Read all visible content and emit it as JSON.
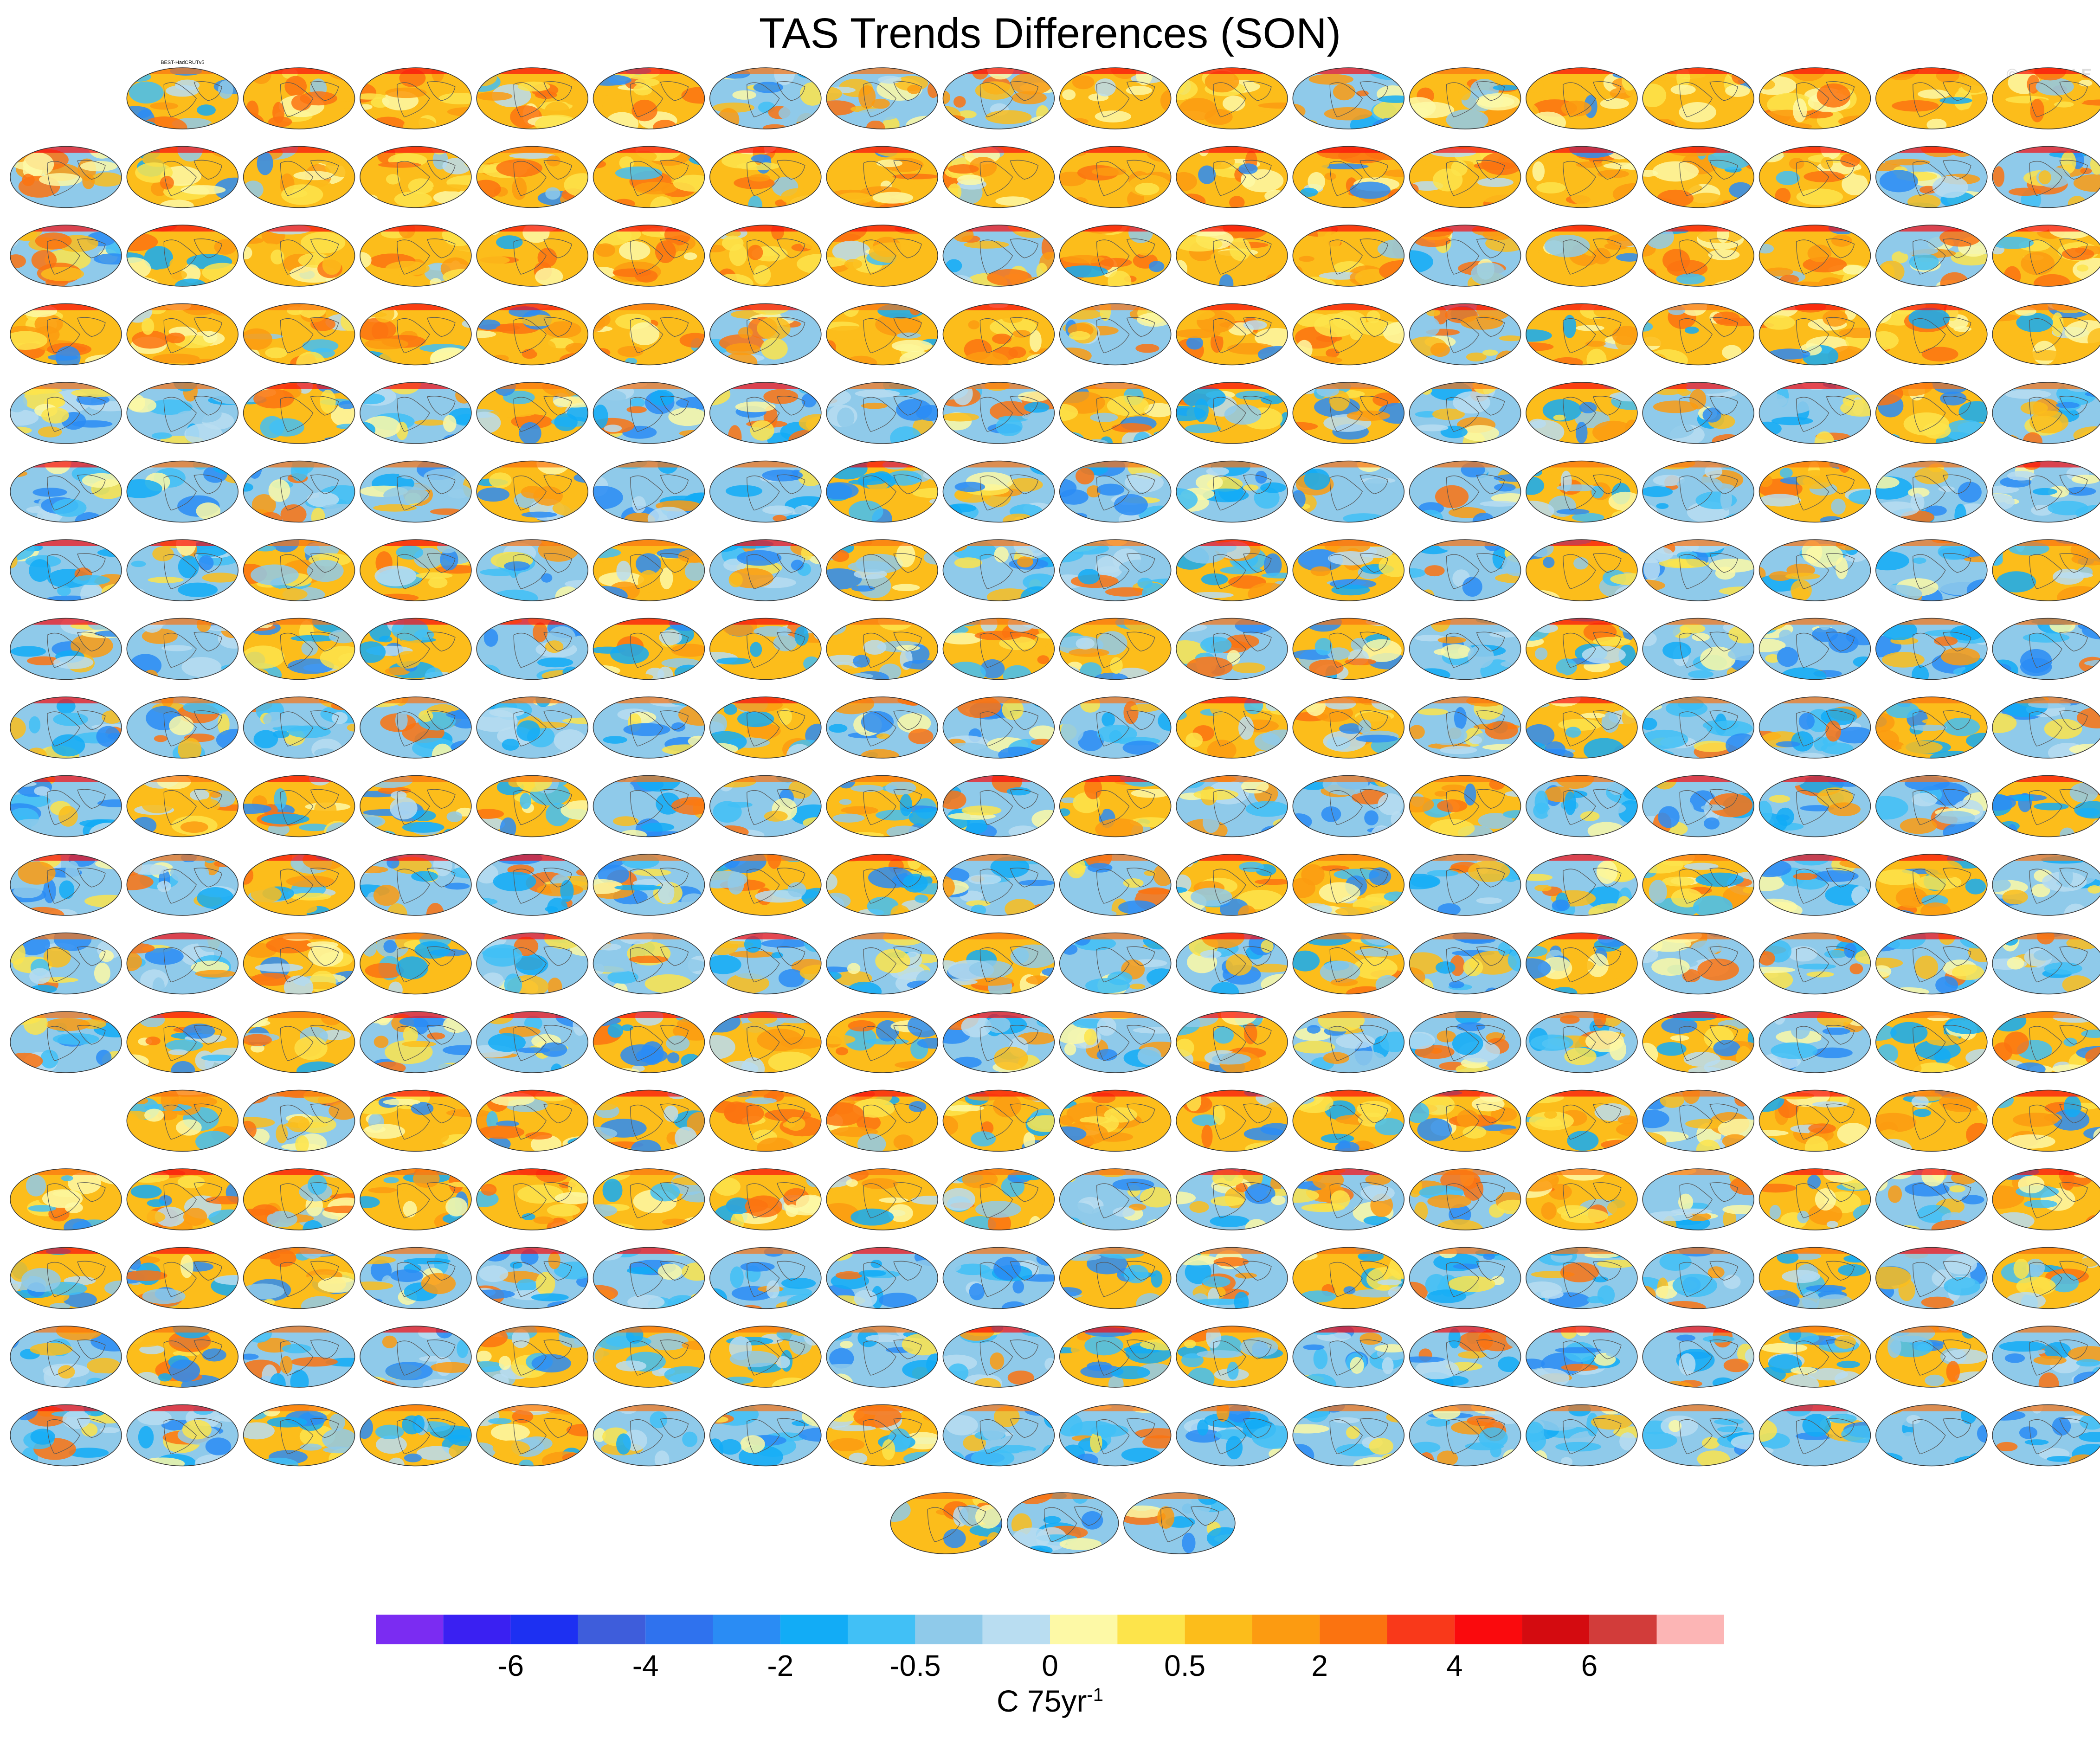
{
  "title": "TAS Trends Differences (SON)",
  "watermark": "© CVDP-LE",
  "chart_data": {
    "type": "heatmap",
    "description_of_panels": "Small-multiple global maps of SON surface air temperature trend differences (model ensemble member minus observations)",
    "panel_count": 294,
    "first_panel_label": "BEST-HadCRUTv5",
    "colorbar": {
      "unit_text": "C 75yr",
      "unit_superscript": "-1",
      "tick_labels": [
        "-6",
        "-4",
        "-2",
        "-0.5",
        "0",
        "0.5",
        "2",
        "4",
        "6"
      ],
      "colors": [
        "#7b2cf2",
        "#3a20f2",
        "#1d30f2",
        "#3e5ddb",
        "#2f72ee",
        "#2a8cf4",
        "#12acf6",
        "#41c0f6",
        "#8fcaea",
        "#b9ddf1",
        "#fdf9a6",
        "#fde44b",
        "#fcbd1b",
        "#fc9b11",
        "#fb7310",
        "#f9391a",
        "#fa0a0d",
        "#d40b10",
        "#d23c3a",
        "#fcb5b5"
      ]
    }
  }
}
